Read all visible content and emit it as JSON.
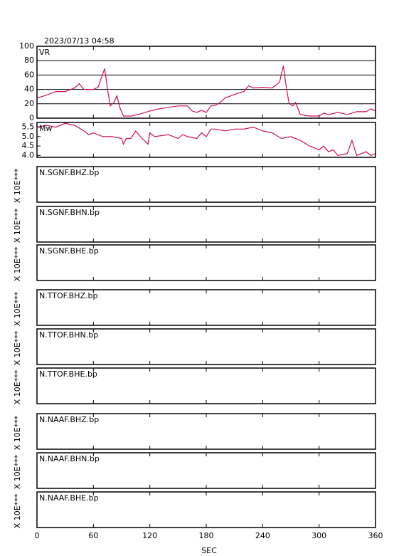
{
  "header": {
    "timestamp": "2023/07/13 04:58"
  },
  "chart_data": [
    {
      "type": "line",
      "label": "VR",
      "xlim": [
        0,
        360
      ],
      "xticks": [
        0,
        60,
        120,
        180,
        240,
        300,
        360
      ],
      "ylim": [
        0,
        100
      ],
      "yticks": [
        0,
        20,
        40,
        60,
        80,
        100
      ],
      "grid": true,
      "series": [
        {
          "color": "#d0104c",
          "x": [
            0,
            10,
            20,
            30,
            40,
            45,
            50,
            60,
            65,
            70,
            72,
            75,
            78,
            82,
            85,
            88,
            92,
            100,
            110,
            120,
            130,
            140,
            150,
            160,
            165,
            170,
            175,
            180,
            185,
            190,
            195,
            200,
            210,
            220,
            225,
            230,
            240,
            250,
            258,
            262,
            265,
            268,
            272,
            275,
            280,
            290,
            300,
            305,
            310,
            320,
            330,
            340,
            350,
            355,
            360
          ],
          "values": [
            28,
            32,
            37,
            37,
            42,
            48,
            40,
            40,
            43,
            62,
            69,
            40,
            17,
            22,
            31,
            15,
            3,
            3,
            6,
            10,
            13,
            15,
            17,
            17,
            10,
            8,
            11,
            8,
            17,
            18,
            22,
            28,
            33,
            37,
            45,
            42,
            43,
            42,
            50,
            73,
            44,
            21,
            17,
            22,
            5,
            3,
            3,
            7,
            5,
            8,
            5,
            9,
            9,
            13,
            10
          ]
        }
      ]
    },
    {
      "type": "line",
      "label": "Mw",
      "xlim": [
        0,
        360
      ],
      "xticks": [
        0,
        60,
        120,
        180,
        240,
        300,
        360
      ],
      "ylim": [
        3.9,
        5.75
      ],
      "yticks": [
        {
          "value": 4,
          "label": "4.0"
        },
        4.5,
        {
          "value": 5,
          "label": "5.0"
        },
        5.5
      ],
      "grid": false,
      "series": [
        {
          "color": "#d0104c",
          "x": [
            0,
            10,
            20,
            30,
            40,
            50,
            55,
            60,
            70,
            80,
            90,
            92,
            95,
            100,
            105,
            110,
            118,
            120,
            125,
            140,
            150,
            155,
            160,
            170,
            175,
            180,
            185,
            190,
            200,
            210,
            220,
            230,
            240,
            250,
            260,
            270,
            280,
            290,
            300,
            305,
            310,
            315,
            320,
            330,
            335,
            340,
            345,
            350,
            355,
            360
          ],
          "values": [
            5.5,
            5.6,
            5.5,
            5.7,
            5.6,
            5.3,
            5.1,
            5.2,
            5.0,
            5.0,
            4.9,
            4.6,
            4.9,
            4.9,
            5.3,
            5.0,
            4.6,
            5.2,
            5.0,
            5.1,
            4.9,
            5.1,
            5.0,
            4.9,
            5.2,
            5.0,
            5.4,
            5.4,
            5.3,
            5.4,
            5.4,
            5.5,
            5.3,
            5.2,
            4.9,
            5.0,
            4.8,
            4.5,
            4.3,
            4.5,
            4.2,
            4.3,
            4.0,
            4.1,
            4.8,
            4.0,
            4.1,
            4.2,
            4.0,
            4.1
          ]
        }
      ]
    }
  ],
  "panels": [
    {
      "label": "N.SGNF.BHZ.bp",
      "scale_label": "X 10E***"
    },
    {
      "label": "N.SGNF.BHN.bp",
      "scale_label": "X 10E***"
    },
    {
      "label": "N.SGNF.BHE.bp",
      "scale_label": "X 10E***"
    },
    {
      "label": "N.TTOF.BHZ.bp",
      "scale_label": "X 10E***"
    },
    {
      "label": "N.TTOF.BHN.bp",
      "scale_label": "X 10E***"
    },
    {
      "label": "N.TTOF.BHE.bp",
      "scale_label": "X 10E***"
    },
    {
      "label": "N.NAAF.BHZ.bp",
      "scale_label": "X 10E***"
    },
    {
      "label": "N.NAAF.BHN.bp",
      "scale_label": "X 10E***"
    },
    {
      "label": "N.NAAF.BHE.bp",
      "scale_label": "X 10E***"
    }
  ],
  "time_axis": {
    "label": "SEC",
    "xlim": [
      0,
      360
    ],
    "xticks": [
      0,
      60,
      120,
      180,
      240,
      300,
      360
    ]
  }
}
